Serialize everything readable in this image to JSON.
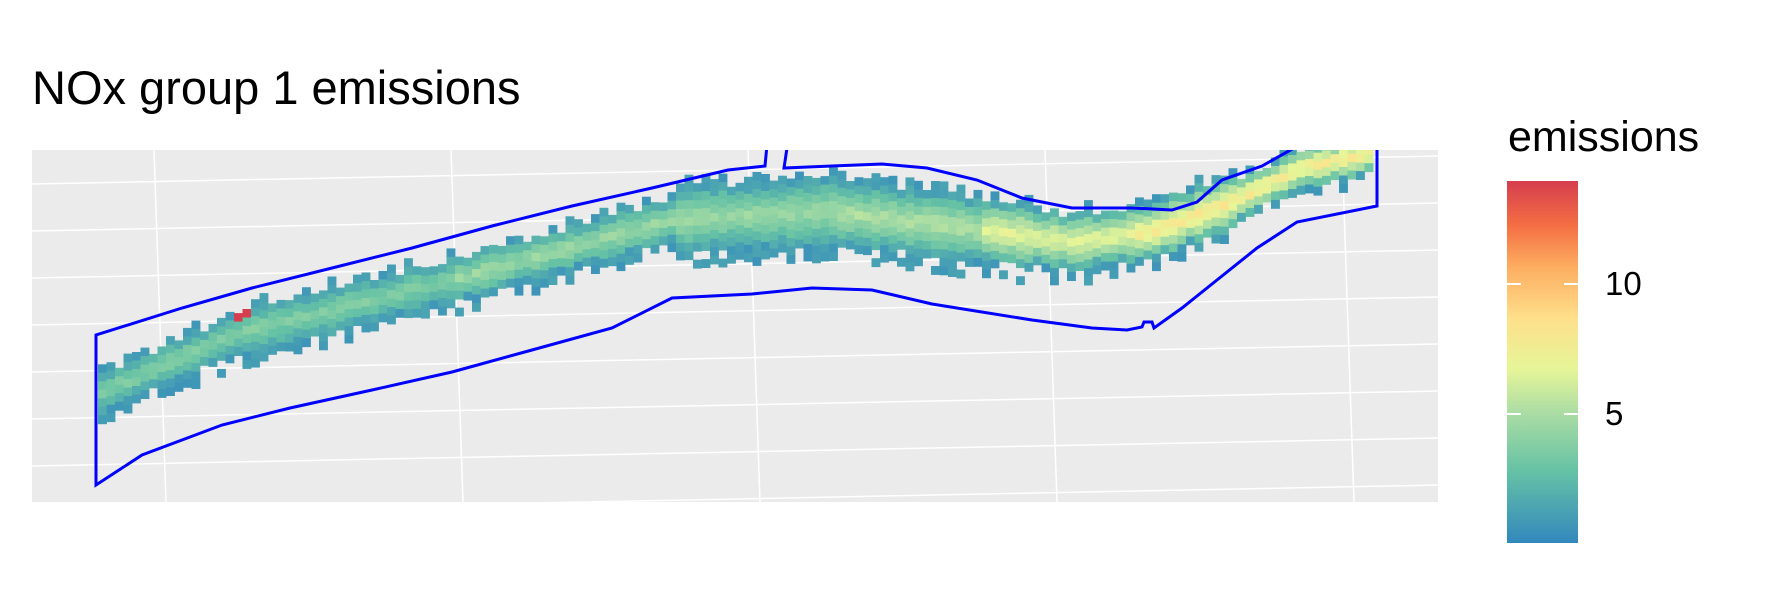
{
  "title": "NOx group 1 emissions",
  "legend": {
    "title": "emissions",
    "ticks": [
      {
        "label": "5",
        "value": 5
      },
      {
        "label": "10",
        "value": 10
      }
    ],
    "range": [
      0,
      14
    ],
    "palette": [
      "#3288bd",
      "#66c2a5",
      "#abdda4",
      "#e6f598",
      "#fee08b",
      "#fdae61",
      "#f46d43",
      "#d53e4f"
    ]
  },
  "colors": {
    "panel_background": "#ebebeb",
    "grid": "#ffffff",
    "boundary": "#0000ff"
  },
  "chart_data": {
    "type": "heatmap",
    "title": "NOx group 1 emissions",
    "legend_title": "emissions",
    "legend_placement": "right",
    "value_range": [
      0,
      14
    ],
    "hotspot_value": 14,
    "peak_corridor_value": 7,
    "axes_labels_shown": false,
    "grid": true
  }
}
